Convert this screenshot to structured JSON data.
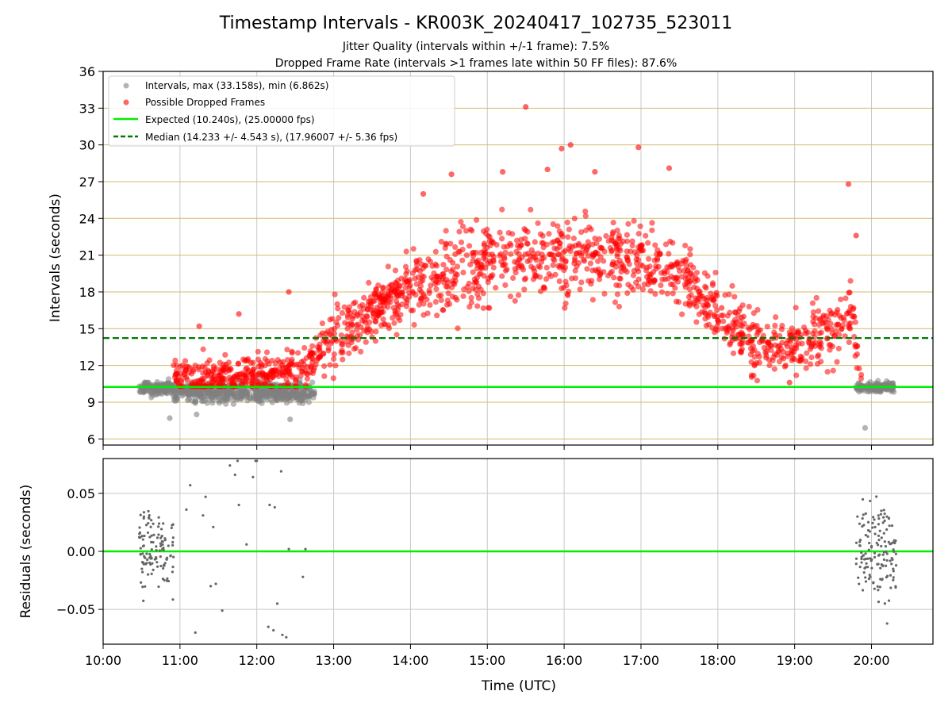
{
  "figure": {
    "title": "Timestamp Intervals - KR003K_20240417_102735_523011",
    "subtitle_1": "Jitter Quality (intervals within +/-1 frame): 7.5%",
    "subtitle_2": "Dropped Frame Rate (intervals >1 frames late within 50 FF files): 87.6%"
  },
  "colors": {
    "normal_points": "#808080",
    "dropped_points": "#ff0000",
    "expected_line": "#00ee00",
    "median_line": "#007a00",
    "grid_gold": "#d4b96a",
    "grid_grey": "#c8c8c8",
    "residual_points": "#666666"
  },
  "chart_data": [
    {
      "type": "scatter",
      "name": "intervals",
      "xlabel": "Time (UTC)",
      "ylabel": "Intervals (seconds)",
      "xlim": [
        "10:00",
        "20:48"
      ],
      "ylim": [
        5.5,
        36
      ],
      "yticks": [
        "6",
        "9",
        "12",
        "15",
        "18",
        "21",
        "24",
        "27",
        "30",
        "33",
        "36"
      ],
      "xticks": [
        "10:00",
        "11:00",
        "12:00",
        "13:00",
        "14:00",
        "15:00",
        "16:00",
        "17:00",
        "18:00",
        "19:00",
        "20:00"
      ],
      "grid": "horizontal gold lines at y ticks, vertical grey lines at x ticks",
      "legend_position": "top-left",
      "legend": [
        "Intervals, max (33.158s), min (6.862s)",
        "Possible Dropped Frames",
        "Expected (10.240s), (25.00000 fps)",
        "Median (14.233 +/- 4.543 s), (17.96007 +/- 5.36 fps)"
      ],
      "expected_interval": 10.24,
      "median_interval": 14.233,
      "max_interval": 33.158,
      "min_interval": 6.862,
      "normal_series": {
        "segments": [
          {
            "from": "10:28",
            "to": "10:55",
            "mean": 10.2,
            "spread": 0.8
          },
          {
            "from": "10:55",
            "to": "12:45",
            "mean": 9.8,
            "spread": 1.2
          },
          {
            "from": "19:48",
            "to": "20:18",
            "mean": 10.2,
            "spread": 0.6
          }
        ],
        "x": [
          "10:52",
          "11:13",
          "12:26",
          "19:55"
        ],
        "y": [
          7.7,
          8.0,
          7.6,
          6.9
        ]
      },
      "dropped_series": {
        "trend_x": [
          "10:55",
          "12:00",
          "12:40",
          "13:00",
          "13:30",
          "14:00",
          "14:30",
          "15:00",
          "15:30",
          "16:00",
          "16:30",
          "17:00",
          "17:30",
          "18:00",
          "18:30",
          "19:00",
          "19:30",
          "19:45",
          "19:52"
        ],
        "trend_y": [
          11.0,
          11.2,
          12.0,
          14.0,
          16.5,
          18.5,
          19.5,
          20.3,
          20.8,
          21.0,
          21.0,
          20.3,
          19.5,
          16.5,
          13.5,
          13.5,
          15.0,
          16.5,
          11.0
        ],
        "outlier_x": [
          "11:15",
          "11:46",
          "12:25",
          "14:10",
          "14:32",
          "15:12",
          "15:30",
          "15:47",
          "15:58",
          "16:05",
          "16:24",
          "16:58",
          "17:22",
          "18:03",
          "19:42",
          "19:48",
          "18:56"
        ],
        "outlier_y": [
          15.2,
          16.2,
          18.0,
          26.0,
          27.6,
          27.8,
          33.1,
          28.0,
          29.7,
          30.0,
          27.8,
          29.8,
          28.1,
          16.7,
          26.8,
          22.6,
          10.6
        ]
      }
    },
    {
      "type": "scatter",
      "name": "residuals",
      "xlabel": "Time (UTC)",
      "ylabel": "Residuals (seconds)",
      "xlim": [
        "10:00",
        "20:48"
      ],
      "ylim": [
        -0.08,
        0.08
      ],
      "yticks": [
        "−0.05",
        "0.00",
        "0.05"
      ],
      "xticks": [
        "10:00",
        "11:00",
        "12:00",
        "13:00",
        "14:00",
        "15:00",
        "16:00",
        "17:00",
        "18:00",
        "19:00",
        "20:00"
      ],
      "grid": "grey lines",
      "zero_line": 0.0,
      "clusters": [
        {
          "from": "10:28",
          "to": "10:55",
          "spread": 0.06
        },
        {
          "from": "19:48",
          "to": "20:20",
          "spread": 0.07
        }
      ],
      "x": [
        "11:05",
        "11:08",
        "11:12",
        "11:18",
        "11:20",
        "11:24",
        "11:26",
        "11:28",
        "11:33",
        "11:39",
        "11:43",
        "11:45",
        "11:46",
        "11:52",
        "11:57",
        "11:59",
        "12:00",
        "12:09",
        "12:10",
        "12:13",
        "12:14",
        "12:16",
        "12:19",
        "12:20",
        "12:23",
        "12:25",
        "12:36",
        "12:38"
      ],
      "y": [
        0.036,
        0.057,
        -0.07,
        0.031,
        0.047,
        -0.03,
        0.021,
        -0.028,
        -0.051,
        0.074,
        0.066,
        0.078,
        0.04,
        0.006,
        0.064,
        0.078,
        0.078,
        -0.065,
        0.04,
        -0.068,
        0.038,
        -0.045,
        0.069,
        -0.072,
        -0.074,
        0.002,
        -0.022,
        0.002
      ]
    }
  ]
}
